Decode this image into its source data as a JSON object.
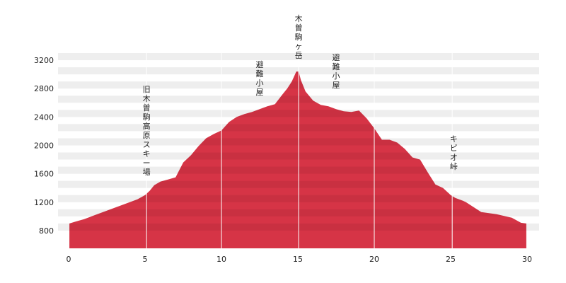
{
  "chart_data": {
    "type": "area",
    "title": "",
    "xlabel": "",
    "ylabel": "",
    "xlim": [
      0,
      30
    ],
    "ylim": [
      550,
      3350
    ],
    "xticks": [
      "0",
      "5",
      "10",
      "15",
      "20",
      "25",
      "30"
    ],
    "yticks": [
      "800",
      "1200",
      "1600",
      "2000",
      "2400",
      "2800",
      "3200"
    ],
    "grid": "alternating horizontal bands",
    "series": [
      {
        "color": "#d63446",
        "x": [
          0.05,
          0.5,
          1,
          1.5,
          2,
          2.5,
          3,
          3.5,
          4,
          4.5,
          5,
          5.3,
          5.6,
          6,
          6.5,
          7,
          7.5,
          8,
          8.5,
          9,
          9.5,
          10,
          10.5,
          11,
          11.5,
          12,
          12.5,
          13,
          13.5,
          14,
          14.3,
          14.6,
          14.9,
          15.05,
          15.2,
          15.5,
          16,
          16.5,
          17,
          17.5,
          18,
          18.5,
          19,
          19.5,
          20,
          20.5,
          21,
          21.5,
          22,
          22.5,
          23,
          23.5,
          24,
          24.5,
          25,
          25.3,
          25.8,
          26,
          27,
          28,
          29,
          29.6,
          29.95
        ],
        "values": [
          900,
          930,
          960,
          1000,
          1040,
          1080,
          1120,
          1160,
          1200,
          1240,
          1300,
          1360,
          1440,
          1490,
          1520,
          1550,
          1760,
          1860,
          1990,
          2100,
          2160,
          2210,
          2330,
          2400,
          2440,
          2470,
          2510,
          2550,
          2580,
          2720,
          2800,
          2900,
          3040,
          3040,
          2920,
          2760,
          2630,
          2570,
          2550,
          2510,
          2480,
          2470,
          2490,
          2380,
          2240,
          2080,
          2080,
          2040,
          1950,
          1830,
          1800,
          1620,
          1450,
          1400,
          1300,
          1260,
          1220,
          1200,
          1060,
          1030,
          980,
          910,
          900
        ]
      }
    ],
    "annotations": [
      {
        "label": "旧木曽駒高原スキー場",
        "x": 5.1
      },
      {
        "label": "避難小屋",
        "x": 12.5
      },
      {
        "label": "木曽駒ヶ岳",
        "x": 15.05
      },
      {
        "label": "避難小屋",
        "x": 17.5
      },
      {
        "label": "キビオ峠",
        "x": 25.2
      }
    ],
    "vertical_markers": [
      5.1,
      10,
      15.05,
      20,
      25.1
    ]
  }
}
